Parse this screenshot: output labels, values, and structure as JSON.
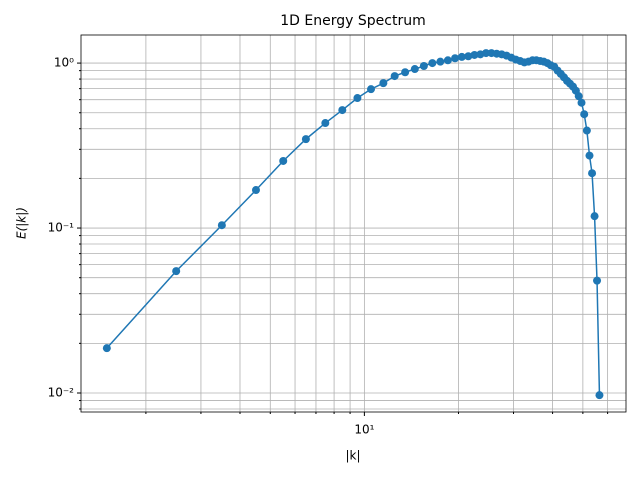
{
  "chart_data": {
    "type": "line",
    "title": "1D Energy Spectrum",
    "x_label": "|k|",
    "y_label": "E(|k|)",
    "x_scale": "log",
    "y_scale": "log",
    "grid": true,
    "xlim": [
      1.24,
      68.7
    ],
    "ylim": [
      0.00767,
      1.48
    ],
    "xticks": [
      {
        "value": 10,
        "label": "10¹"
      }
    ],
    "xminorticks": [
      2,
      3,
      4,
      5,
      6,
      7,
      8,
      9,
      20,
      30,
      40,
      50,
      60
    ],
    "yticks": [
      {
        "value": 0.01,
        "label": "10⁻²"
      },
      {
        "value": 0.1,
        "label": "10⁻¹"
      },
      {
        "value": 1,
        "label": "10⁰"
      }
    ],
    "yminorticks": [
      0.008,
      0.009,
      0.02,
      0.03,
      0.04,
      0.05,
      0.06,
      0.07,
      0.08,
      0.09,
      0.2,
      0.3,
      0.4,
      0.5,
      0.6,
      0.7,
      0.8,
      0.9
    ],
    "x": [
      1.5,
      2.5,
      3.5,
      4.5,
      5.5,
      6.5,
      7.5,
      8.5,
      9.5,
      10.5,
      11.5,
      12.5,
      13.5,
      14.5,
      15.5,
      16.5,
      17.5,
      18.5,
      19.5,
      20.5,
      21.5,
      22.5,
      23.5,
      24.5,
      25.5,
      26.5,
      27.5,
      28.5,
      29.5,
      30.5,
      31.5,
      32.5,
      33.5,
      34.5,
      35.5,
      36.5,
      37.5,
      38.5,
      39.5,
      40.5,
      41.5,
      42.5,
      43.5,
      44.5,
      45.5,
      46.5,
      47.5,
      48.5,
      49.5,
      50.5,
      51.5,
      52.5,
      53.5,
      54.5,
      55.5,
      56.5
    ],
    "series": [
      {
        "color": "#1f77b4",
        "values": [
          0.0187,
          0.0548,
          0.104,
          0.17,
          0.255,
          0.346,
          0.433,
          0.519,
          0.614,
          0.695,
          0.756,
          0.834,
          0.88,
          0.92,
          0.96,
          1.0,
          1.02,
          1.04,
          1.07,
          1.09,
          1.1,
          1.12,
          1.13,
          1.15,
          1.15,
          1.14,
          1.13,
          1.11,
          1.08,
          1.05,
          1.03,
          1.01,
          1.02,
          1.04,
          1.04,
          1.03,
          1.02,
          1.0,
          0.97,
          0.95,
          0.9,
          0.86,
          0.82,
          0.78,
          0.75,
          0.72,
          0.68,
          0.63,
          0.575,
          0.49,
          0.39,
          0.275,
          0.215,
          0.118,
          0.048,
          0.0097
        ]
      }
    ]
  }
}
